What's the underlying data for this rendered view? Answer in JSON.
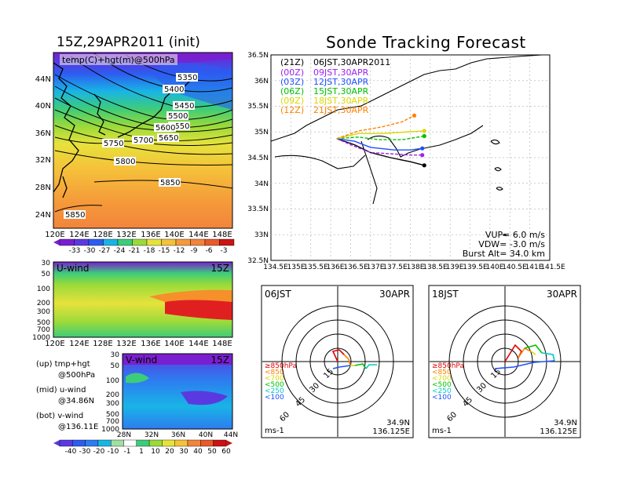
{
  "left": {
    "title": "15Z,29APR2011 (init)",
    "map_label": "temp(C)+hgt(m)@500hPa",
    "lat_ticks": [
      "44N",
      "40N",
      "36N",
      "32N",
      "28N",
      "24N"
    ],
    "lon_ticks": [
      "120E",
      "124E",
      "128E",
      "132E",
      "136E",
      "140E",
      "144E",
      "148E"
    ],
    "contour_labels": [
      "5350",
      "5400",
      "5450",
      "5500",
      "5550",
      "5600",
      "5650",
      "5700",
      "5750",
      "5800",
      "5850",
      "5850",
      "5850"
    ],
    "temp_colorbar": [
      "-33",
      "-30",
      "-27",
      "-24",
      "-21",
      "-18",
      "-15",
      "-12",
      "-9",
      "-6",
      "-3"
    ],
    "uwind": {
      "label": "U-wind",
      "time": "15Z",
      "p_ticks": [
        "30",
        "50",
        "100",
        "200",
        "300",
        "500",
        "700",
        "1000"
      ]
    },
    "vwind": {
      "label": "V-wind",
      "time": "15Z",
      "p_ticks": [
        "30",
        "50",
        "100",
        "200",
        "300",
        "500",
        "700",
        "1000"
      ],
      "lat_ticks": [
        "28N",
        "32N",
        "36N",
        "40N",
        "44N"
      ]
    },
    "wind_colorbar": [
      "-40",
      "-30",
      "-20",
      "-10",
      "-1",
      "1",
      "10",
      "20",
      "30",
      "40",
      "50",
      "60"
    ],
    "notes": [
      {
        "a": "(up) tmp+hgt",
        "b": "@500hPa"
      },
      {
        "a": "(mid) u-wind",
        "b": "@34.86N"
      },
      {
        "a": "(bot) v-wind",
        "b": "@136.11E"
      }
    ]
  },
  "right": {
    "title": "Sonde Tracking Forecast",
    "lat_ticks": [
      "36.5N",
      "36N",
      "35.5N",
      "35N",
      "34.5N",
      "34N",
      "33.5N",
      "33N",
      "32.5N"
    ],
    "lon_ticks": [
      "134.5E",
      "135E",
      "135.5E",
      "136E",
      "136.5E",
      "137E",
      "137.5E",
      "138E",
      "138.5E",
      "139E",
      "139.5E",
      "140E",
      "140.5E",
      "141E",
      "141.5E"
    ],
    "legend": [
      {
        "run": "(21Z)",
        "time": "06JST,30APR2011",
        "color": "#000000"
      },
      {
        "run": "(00Z)",
        "time": "09JST,30APR",
        "color": "#a020f0"
      },
      {
        "run": "(03Z)",
        "time": "12JST,30APR",
        "color": "#1e50ff"
      },
      {
        "run": "(06Z)",
        "time": "15JST,30APR",
        "color": "#00c000"
      },
      {
        "run": "(09Z)",
        "time": "18JST,30APR",
        "color": "#d8d800"
      },
      {
        "run": "(12Z)",
        "time": "21JST,30APR",
        "color": "#ff8000"
      }
    ],
    "params": {
      "vup": "VUP= 6.0 m/s",
      "vdw": "VDW= -3.0 m/s",
      "burst": "Burst Alt= 34.0 km"
    }
  },
  "hodographs": [
    {
      "time": "06JST",
      "date": "30APR",
      "ring_labels": [
        "15",
        "30",
        "45",
        "60"
      ],
      "unit": "ms-1",
      "lat": "34.9N",
      "lon": "136.125E",
      "legend": [
        {
          "t": "≥850hPa",
          "c": "#e00000"
        },
        {
          "t": "<850",
          "c": "#ff8000"
        },
        {
          "t": "<700",
          "c": "#d8d800"
        },
        {
          "t": "<500",
          "c": "#00c000"
        },
        {
          "t": "<250",
          "c": "#00c8c8"
        },
        {
          "t": "<100",
          "c": "#1e50ff"
        }
      ]
    },
    {
      "time": "18JST",
      "date": "30APR",
      "ring_labels": [
        "15",
        "30",
        "45",
        "60"
      ],
      "unit": "ms-1",
      "lat": "34.9N",
      "lon": "136.125E",
      "legend": [
        {
          "t": "≥850hPa",
          "c": "#e00000"
        },
        {
          "t": "<850",
          "c": "#ff8000"
        },
        {
          "t": "<700",
          "c": "#d8d800"
        },
        {
          "t": "<500",
          "c": "#00c000"
        },
        {
          "t": "<250",
          "c": "#00c8c8"
        },
        {
          "t": "<100",
          "c": "#1e50ff"
        }
      ]
    }
  ],
  "chart_data": [
    {
      "type": "heatmap",
      "title": "15Z,29APR2011 (init)",
      "variable": "temp(C)+hgt(m)@500hPa",
      "xlim": [
        120,
        150
      ],
      "ylim": [
        22,
        47
      ],
      "colorbar_levels": [
        -33,
        -30,
        -27,
        -24,
        -21,
        -18,
        -15,
        -12,
        -9,
        -6,
        -3
      ],
      "height_contours": [
        5350,
        5400,
        5450,
        5500,
        5550,
        5600,
        5650,
        5700,
        5750,
        5800,
        5850
      ]
    },
    {
      "type": "heatmap",
      "title": "U-wind",
      "time": "15Z",
      "x_label": "lon 120E-148E",
      "y_label": "hPa",
      "p_levels": [
        30,
        50,
        100,
        200,
        300,
        500,
        700,
        1000
      ],
      "colorbar_levels": [
        -40,
        -30,
        -20,
        -10,
        -1,
        1,
        10,
        20,
        30,
        40,
        50,
        60
      ]
    },
    {
      "type": "heatmap",
      "title": "V-wind",
      "time": "15Z",
      "x_label": "lat 28N-44N",
      "y_label": "hPa",
      "p_levels": [
        30,
        50,
        100,
        200,
        300,
        500,
        700,
        1000
      ]
    },
    {
      "type": "line",
      "title": "Sonde Tracking Forecast",
      "xlim": [
        134.5,
        141.5
      ],
      "ylim": [
        32.5,
        36.5
      ],
      "series": [
        {
          "name": "(21Z) 06JST,30APR2011",
          "points": [
            [
              136.15,
              34.87
            ],
            [
              136.6,
              34.75
            ],
            [
              137.0,
              34.6
            ],
            [
              137.5,
              34.5
            ],
            [
              138.0,
              34.42
            ],
            [
              138.35,
              34.35
            ]
          ]
        },
        {
          "name": "(00Z) 09JST,30APR",
          "points": [
            [
              136.15,
              34.87
            ],
            [
              136.6,
              34.72
            ],
            [
              137.0,
              34.6
            ],
            [
              137.6,
              34.57
            ],
            [
              138.0,
              34.55
            ],
            [
              138.3,
              34.55
            ]
          ]
        },
        {
          "name": "(03Z) 12JST,30APR",
          "points": [
            [
              136.15,
              34.87
            ],
            [
              136.6,
              34.82
            ],
            [
              137.0,
              34.7
            ],
            [
              137.6,
              34.65
            ],
            [
              138.0,
              34.65
            ],
            [
              138.3,
              34.68
            ]
          ]
        },
        {
          "name": "(06Z) 15JST,30APR",
          "points": [
            [
              136.15,
              34.87
            ],
            [
              136.7,
              34.9
            ],
            [
              137.2,
              34.85
            ],
            [
              137.8,
              34.85
            ],
            [
              138.35,
              34.92
            ]
          ]
        },
        {
          "name": "(09Z) 18JST,30APR",
          "points": [
            [
              136.15,
              34.87
            ],
            [
              136.7,
              34.97
            ],
            [
              137.3,
              34.97
            ],
            [
              137.9,
              35.0
            ],
            [
              138.35,
              35.02
            ]
          ]
        },
        {
          "name": "(12Z) 21JST,30APR",
          "points": [
            [
              136.15,
              34.87
            ],
            [
              136.7,
              35.02
            ],
            [
              137.3,
              35.1
            ],
            [
              137.8,
              35.2
            ],
            [
              138.1,
              35.32
            ]
          ]
        }
      ]
    }
  ]
}
